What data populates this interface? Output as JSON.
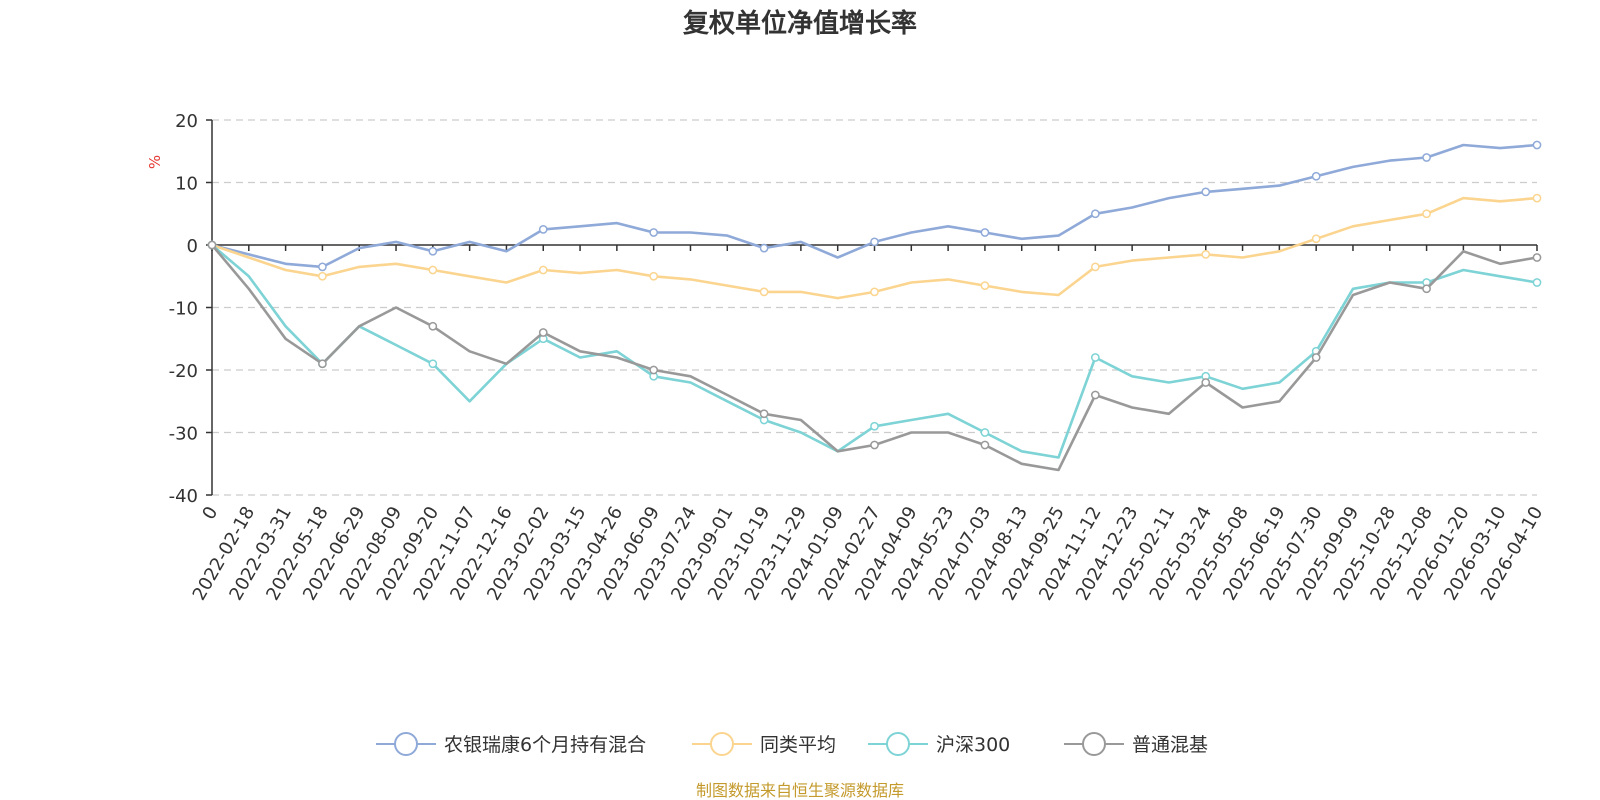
{
  "chart_data": {
    "type": "line",
    "title": "复权单位净值增长率",
    "ylabel": "%",
    "ylim": [
      -40,
      20
    ],
    "yticks": [
      20,
      10,
      0,
      -10,
      -20,
      -30,
      -40
    ],
    "grid": true,
    "legend_position": "bottom-center",
    "source": "制图数据来自恒生聚源数据库",
    "categories": [
      "0",
      "2022-02-18",
      "2022-03-31",
      "2022-05-18",
      "2022-06-29",
      "2022-08-09",
      "2022-09-20",
      "2022-11-07",
      "2022-12-16",
      "2023-02-02",
      "2023-03-15",
      "2023-04-26",
      "2023-06-09",
      "2023-07-24",
      "2023-09-01",
      "2023-10-19",
      "2023-11-29",
      "2024-01-09",
      "2024-02-27",
      "2024-04-09",
      "2024-05-23",
      "2024-07-03",
      "2024-08-13",
      "2024-09-25",
      "2024-11-12",
      "2024-12-23",
      "2025-02-11",
      "2025-03-24",
      "2025-05-08",
      "2025-06-19",
      "2025-07-30",
      "2025-09-09",
      "2025-10-28",
      "2025-12-08",
      "2026-01-20",
      "2026-03-10",
      "2026-04-10"
    ],
    "series": [
      {
        "name": "农银瑞康6个月持有混合",
        "color": "#8fa9d8",
        "values": [
          0,
          -1.5,
          -3,
          -3.5,
          -0.5,
          0.5,
          -1,
          0.5,
          -1,
          2.5,
          3,
          3.5,
          2,
          2,
          1.5,
          -0.5,
          0.5,
          -2,
          0.5,
          2,
          3,
          2,
          1,
          1.5,
          5,
          6,
          7.5,
          8.5,
          9,
          9.5,
          11,
          12.5,
          13.5,
          14,
          16,
          15.5,
          16
        ]
      },
      {
        "name": "同类平均",
        "color": "#fbd58f",
        "values": [
          0,
          -2,
          -4,
          -5,
          -3.5,
          -3,
          -4,
          -5,
          -6,
          -4,
          -4.5,
          -4,
          -5,
          -5.5,
          -6.5,
          -7.5,
          -7.5,
          -8.5,
          -7.5,
          -6,
          -5.5,
          -6.5,
          -7.5,
          -8,
          -3.5,
          -2.5,
          -2,
          -1.5,
          -2,
          -1,
          1,
          3,
          4,
          5,
          7.5,
          7,
          7.5
        ]
      },
      {
        "name": "沪深300",
        "color": "#7dd3d5",
        "values": [
          0,
          -5,
          -13,
          -19,
          -13,
          -16,
          -19,
          -25,
          -19,
          -15,
          -18,
          -17,
          -21,
          -22,
          -25,
          -28,
          -30,
          -33,
          -29,
          -28,
          -27,
          -30,
          -33,
          -34,
          -18,
          -21,
          -22,
          -21,
          -23,
          -22,
          -17,
          -7,
          -6,
          -6,
          -4,
          -5,
          -6
        ]
      },
      {
        "name": "普通混基",
        "color": "#999999",
        "values": [
          0,
          -7,
          -15,
          -19,
          -13,
          -10,
          -13,
          -17,
          -19,
          -14,
          -17,
          -18,
          -20,
          -21,
          -24,
          -27,
          -28,
          -33,
          -32,
          -30,
          -30,
          -32,
          -35,
          -36,
          -24,
          -26,
          -27,
          -22,
          -26,
          -25,
          -18,
          -8,
          -6,
          -7,
          -1,
          -3,
          -2
        ]
      }
    ]
  }
}
